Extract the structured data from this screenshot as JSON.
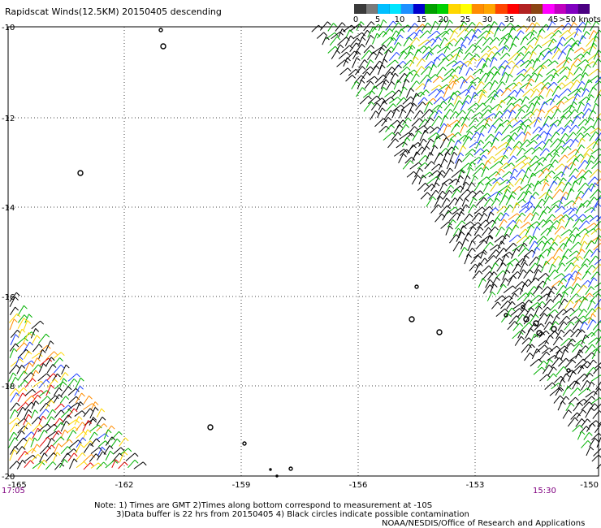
{
  "title": "Rapidscat Winds(12.5KM) 20150405 descending",
  "legend": {
    "labels": [
      "0",
      "5",
      "10",
      "15",
      "20",
      "25",
      "30",
      "35",
      "40",
      "45",
      ">50 knots"
    ],
    "colors": [
      "#3a3a3a",
      "#7a7a7a",
      "#00bfff",
      "#00e5ff",
      "#1e90ff",
      "#0000cd",
      "#00a000",
      "#00d000",
      "#ffd700",
      "#ffff00",
      "#ff8c00",
      "#ffa500",
      "#ff4500",
      "#ff0000",
      "#b22222",
      "#8b4513",
      "#ff00ff",
      "#c000c0",
      "#8000c0",
      "#4b0082"
    ]
  },
  "axes": {
    "y_labels": [
      "-10",
      "-12",
      "-14",
      "-16",
      "-18",
      "-20"
    ],
    "x_labels": [
      "-165",
      "-162",
      "-159",
      "-156",
      "-153",
      "-150"
    ]
  },
  "times": {
    "left": "17:05",
    "right": "15:30"
  },
  "notes": [
    "Note: 1) Times are GMT 2)Times along bottom correspond to measurement at -10S",
    "3)Data buffer is 22 hrs from 20150405 4) Black circles indicate possible contamination",
    "NOAA/NESDIS/Office of Research and Applications"
  ]
}
